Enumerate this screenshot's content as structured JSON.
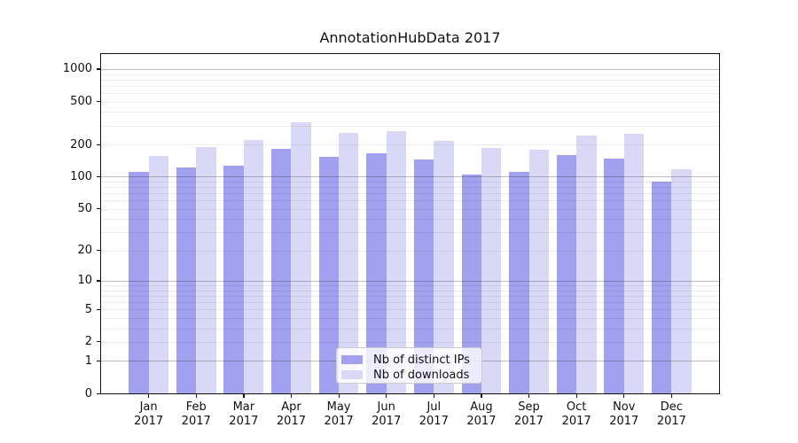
{
  "title": "AnnotationHubData 2017",
  "chart_data": {
    "type": "bar",
    "title": "AnnotationHubData 2017",
    "categories": [
      "Jan",
      "Feb",
      "Mar",
      "Apr",
      "May",
      "Jun",
      "Jul",
      "Aug",
      "Sep",
      "Oct",
      "Nov",
      "Dec"
    ],
    "year": "2017",
    "series": [
      {
        "name": "Nb of distinct IPs",
        "color": "#a1a1ef",
        "values": [
          110,
          122,
          128,
          181,
          152,
          166,
          144,
          105,
          110,
          160,
          148,
          90
        ]
      },
      {
        "name": "Nb of downloads",
        "color": "#d9d9f7",
        "values": [
          156,
          190,
          219,
          323,
          256,
          267,
          216,
          184,
          180,
          243,
          251,
          118
        ]
      }
    ],
    "yscale": "log1p",
    "yticks": [
      0,
      1,
      2,
      5,
      10,
      20,
      50,
      100,
      200,
      500,
      1000
    ],
    "minor_gridlines": [
      2,
      3,
      4,
      5,
      6,
      7,
      8,
      9,
      20,
      30,
      40,
      50,
      60,
      70,
      80,
      90,
      200,
      300,
      400,
      500,
      600,
      700,
      800,
      900
    ],
    "major_gridlines": [
      1,
      10,
      100,
      1000
    ],
    "ylim": [
      0,
      1380
    ],
    "xlabel": "",
    "ylabel": "",
    "grid": "on",
    "legend_position": "lower center"
  },
  "legend": {
    "item1": "Nb of distinct IPs",
    "item2": "Nb of downloads"
  },
  "colors": {
    "ips_bar": "#a1a1ef",
    "downloads_bar": "#d9d9f7",
    "major_grid": "#b5b5b5",
    "minor_grid": "#e9e9e9",
    "axis": "#111111"
  }
}
